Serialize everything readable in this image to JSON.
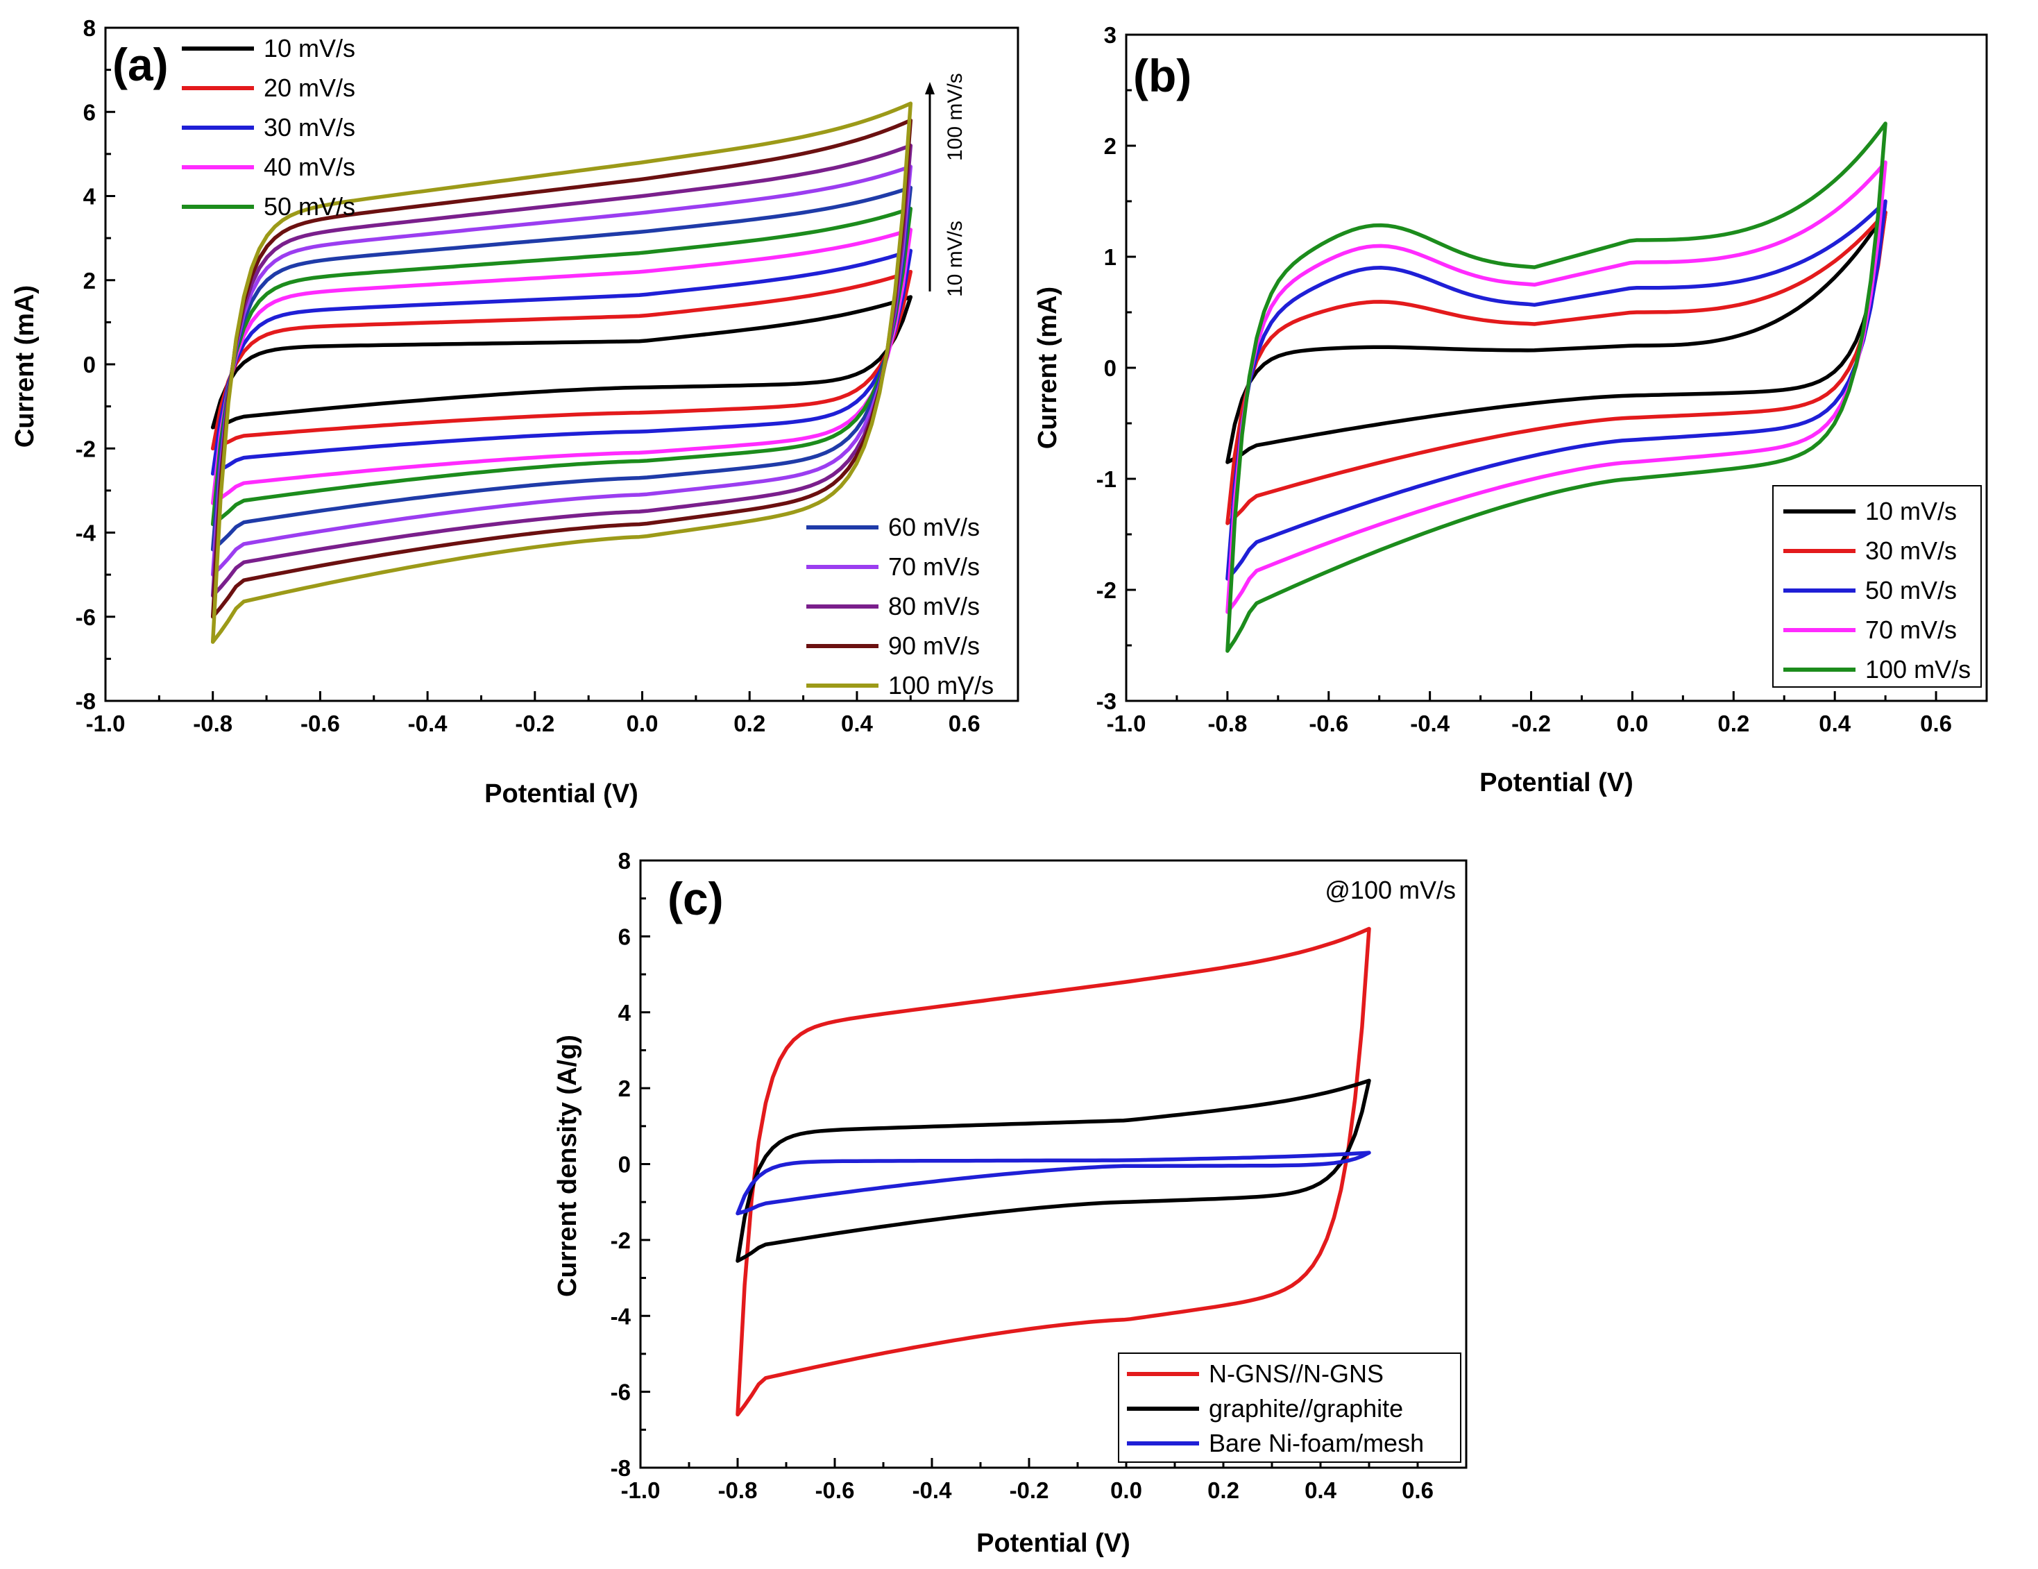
{
  "chart_data": [
    {
      "id": "a",
      "type": "line",
      "panel_label": "(a)",
      "xlabel": "Potential (V)",
      "ylabel": "Current (mA)",
      "xlim": [
        -1.0,
        0.7
      ],
      "ylim": [
        -8,
        8
      ],
      "xticks": [
        "-1.0",
        "-0.8",
        "-0.6",
        "-0.4",
        "-0.2",
        "0.0",
        "0.2",
        "0.4",
        "0.6"
      ],
      "yticks": [
        "8",
        "6",
        "4",
        "2",
        "0",
        "-2",
        "-4",
        "-6",
        "-8"
      ],
      "potential_window": [
        -0.8,
        0.5
      ],
      "annotation": {
        "from": "10 mV/s",
        "to": "100 mV/s"
      },
      "legend_upper": [
        "10 mV/s",
        "20 mV/s",
        "30 mV/s",
        "40 mV/s",
        "50 mV/s"
      ],
      "legend_lower": [
        "60 mV/s",
        "70 mV/s",
        "80 mV/s",
        "90 mV/s",
        "100 mV/s"
      ],
      "series": [
        {
          "name": "10 mV/s",
          "color": "#000000",
          "anodic_at_0V": 0.55,
          "cathodic_at_0V": -0.55,
          "anodic_end": 1.6,
          "cathodic_start": -1.5
        },
        {
          "name": "20 mV/s",
          "color": "#e31a1c",
          "anodic_at_0V": 1.15,
          "cathodic_at_0V": -1.15,
          "anodic_end": 2.2,
          "cathodic_start": -2.0
        },
        {
          "name": "30 mV/s",
          "color": "#1f1fd6",
          "anodic_at_0V": 1.65,
          "cathodic_at_0V": -1.6,
          "anodic_end": 2.7,
          "cathodic_start": -2.6
        },
        {
          "name": "40 mV/s",
          "color": "#ff2bff",
          "anodic_at_0V": 2.2,
          "cathodic_at_0V": -2.1,
          "anodic_end": 3.2,
          "cathodic_start": -3.3
        },
        {
          "name": "50 mV/s",
          "color": "#1c8c1c",
          "anodic_at_0V": 2.65,
          "cathodic_at_0V": -2.3,
          "anodic_end": 3.7,
          "cathodic_start": -3.8
        },
        {
          "name": "60 mV/s",
          "color": "#1f3ba8",
          "anodic_at_0V": 3.15,
          "cathodic_at_0V": -2.7,
          "anodic_end": 4.2,
          "cathodic_start": -4.4
        },
        {
          "name": "70 mV/s",
          "color": "#9b3df0",
          "anodic_at_0V": 3.6,
          "cathodic_at_0V": -3.1,
          "anodic_end": 4.7,
          "cathodic_start": -5.0
        },
        {
          "name": "80 mV/s",
          "color": "#7a1f8c",
          "anodic_at_0V": 4.0,
          "cathodic_at_0V": -3.5,
          "anodic_end": 5.2,
          "cathodic_start": -5.5
        },
        {
          "name": "90 mV/s",
          "color": "#6b1010",
          "anodic_at_0V": 4.4,
          "cathodic_at_0V": -3.8,
          "anodic_end": 5.8,
          "cathodic_start": -6.0
        },
        {
          "name": "100 mV/s",
          "color": "#9c9a18",
          "anodic_at_0V": 4.8,
          "cathodic_at_0V": -4.1,
          "anodic_end": 6.2,
          "cathodic_start": -6.6
        }
      ]
    },
    {
      "id": "b",
      "type": "line",
      "panel_label": "(b)",
      "xlabel": "Potential (V)",
      "ylabel": "Current (mA)",
      "xlim": [
        -1.0,
        0.7
      ],
      "ylim": [
        -3,
        3
      ],
      "xticks": [
        "-1.0",
        "-0.8",
        "-0.6",
        "-0.4",
        "-0.2",
        "0.0",
        "0.2",
        "0.4",
        "0.6"
      ],
      "yticks": [
        "3",
        "2",
        "1",
        "0",
        "-1",
        "-2",
        "-3"
      ],
      "potential_window": [
        -0.8,
        0.5
      ],
      "legend": [
        "10 mV/s",
        "30 mV/s",
        "50 mV/s",
        "70 mV/s",
        "100 mV/s"
      ],
      "series": [
        {
          "name": "10 mV/s",
          "color": "#000000",
          "anodic_hump": 0.18,
          "anodic_at_0V": 0.2,
          "cathodic_at_0V": -0.25,
          "anodic_end": 1.4,
          "cathodic_start": -0.85
        },
        {
          "name": "30 mV/s",
          "color": "#e31a1c",
          "anodic_hump": 0.58,
          "anodic_at_0V": 0.5,
          "cathodic_at_0V": -0.45,
          "anodic_end": 1.4,
          "cathodic_start": -1.4
        },
        {
          "name": "50 mV/s",
          "color": "#1f1fd6",
          "anodic_hump": 0.88,
          "anodic_at_0V": 0.72,
          "cathodic_at_0V": -0.65,
          "anodic_end": 1.5,
          "cathodic_start": -1.9
        },
        {
          "name": "70 mV/s",
          "color": "#ff2bff",
          "anodic_hump": 1.07,
          "anodic_at_0V": 0.95,
          "cathodic_at_0V": -0.85,
          "anodic_end": 1.85,
          "cathodic_start": -2.2
        },
        {
          "name": "100 mV/s",
          "color": "#1c8c1c",
          "anodic_hump": 1.25,
          "anodic_at_0V": 1.15,
          "cathodic_at_0V": -1.0,
          "anodic_end": 2.2,
          "cathodic_start": -2.55
        }
      ]
    },
    {
      "id": "c",
      "type": "line",
      "panel_label": "(c)",
      "xlabel": "Potential (V)",
      "ylabel": "Current density (A/g)",
      "xlim": [
        -1.0,
        0.7
      ],
      "ylim": [
        -8,
        8
      ],
      "xticks": [
        "-1.0",
        "-0.8",
        "-0.6",
        "-0.4",
        "-0.2",
        "0.0",
        "0.2",
        "0.4",
        "0.6"
      ],
      "yticks": [
        "8",
        "6",
        "4",
        "2",
        "0",
        "-2",
        "-4",
        "-6",
        "-8"
      ],
      "annotation": "@100 mV/s",
      "legend": [
        "N-GNS//N-GNS",
        "graphite//graphite",
        "Bare Ni-foam/mesh"
      ],
      "series": [
        {
          "name": "N-GNS//N-GNS",
          "color": "#e31a1c",
          "anodic_at_0V": 4.8,
          "cathodic_at_0V": -4.1,
          "anodic_end": 6.2,
          "cathodic_start": -6.6
        },
        {
          "name": "graphite//graphite",
          "color": "#000000",
          "anodic_at_0V": 1.15,
          "cathodic_at_0V": -1.0,
          "anodic_end": 2.2,
          "cathodic_start": -2.55
        },
        {
          "name": "Bare Ni-foam/mesh",
          "color": "#1f1fd6",
          "anodic_at_0V": 0.1,
          "cathodic_at_0V": -0.05,
          "anodic_end": 0.3,
          "cathodic_start": -1.3
        }
      ]
    }
  ]
}
